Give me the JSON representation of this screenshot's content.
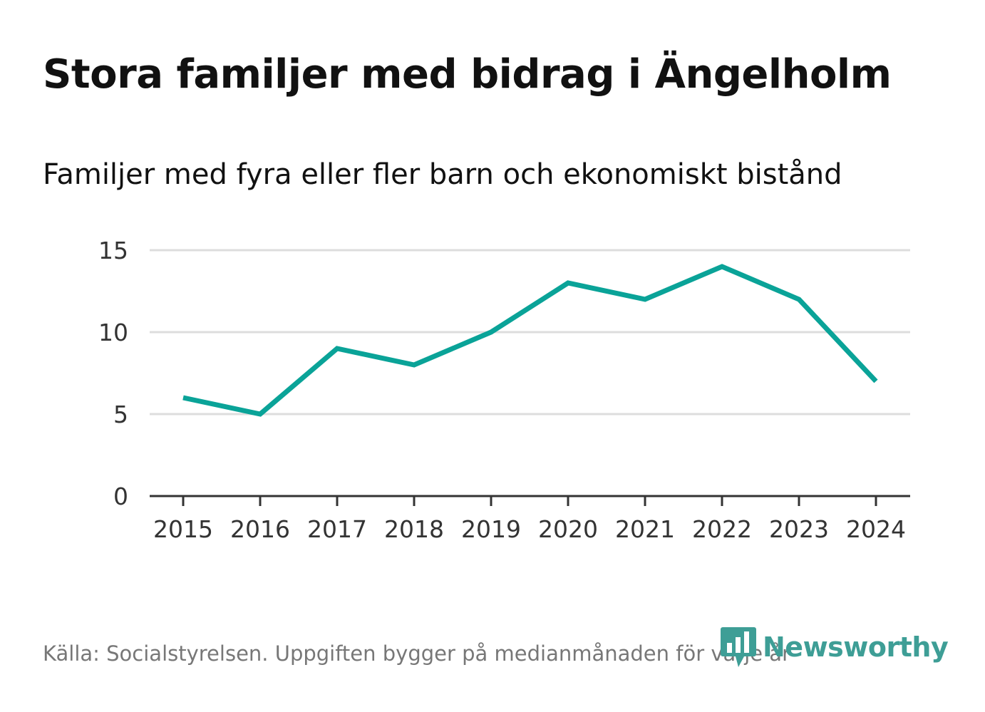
{
  "title": "Stora familjer med bidrag i Ängelholm",
  "subtitle": "Familjer med fyra eller fler barn och ekonomiskt bistånd",
  "source": "Källa: Socialstyrelsen. Uppgiften bygger på medianmånaden för varje år",
  "brand": {
    "name": "Newsworthy",
    "color": "#3e9e96",
    "icon": "bar-chart-speech-bubble-icon"
  },
  "colors": {
    "line": "#0aa398",
    "grid": "#dddddd",
    "axis": "#333333",
    "tick_text": "#333333"
  },
  "chart_data": {
    "type": "line",
    "title": "Familjer med fyra eller fler barn och ekonomiskt bistånd",
    "xlabel": "",
    "ylabel": "",
    "x": [
      "2015",
      "2016",
      "2017",
      "2018",
      "2019",
      "2020",
      "2021",
      "2022",
      "2023",
      "2024"
    ],
    "series": [
      {
        "name": "Familjer med fyra eller fler barn och ekonomiskt bistånd",
        "values": [
          6,
          5,
          9,
          8,
          10,
          13,
          12,
          14,
          12,
          7
        ]
      }
    ],
    "yticks": [
      "0",
      "5",
      "10",
      "15"
    ],
    "ylim": [
      0,
      15
    ],
    "grid": true,
    "legend": "none"
  }
}
